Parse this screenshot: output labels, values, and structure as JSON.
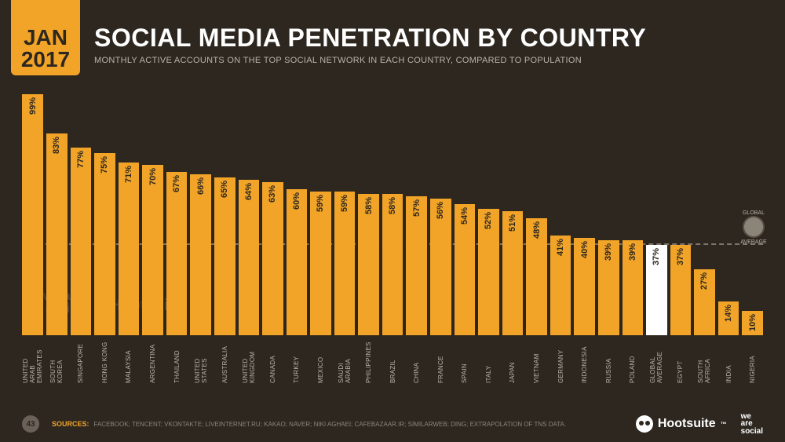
{
  "date": {
    "month": "JAN",
    "year": "2017"
  },
  "title": "SOCIAL MEDIA PENETRATION BY COUNTRY",
  "subtitle": "MONTHLY ACTIVE ACCOUNTS ON THE TOP SOCIAL NETWORK IN EACH COUNTRY, COMPARED TO POPULATION",
  "global_avg_label": "GLOBAL AVERAGE",
  "chart": {
    "type": "bar",
    "orientation": "vertical",
    "value_suffix": "%",
    "max_value": 100,
    "bar_color": "#f2a428",
    "highlight_color": "#ffffff",
    "background_color": "#2d2720",
    "value_text_color": "#2d2720",
    "label_text_color": "#b9b3ab",
    "avg_line_color": "#7e766b",
    "value_fontsize": 11,
    "label_fontsize": 8,
    "global_average_value": 37,
    "data": [
      {
        "label": "UNITED ARAB EMIRATES",
        "value": 99
      },
      {
        "label": "SOUTH KOREA",
        "value": 83
      },
      {
        "label": "SINGAPORE",
        "value": 77
      },
      {
        "label": "HONG KONG",
        "value": 75
      },
      {
        "label": "MALAYSIA",
        "value": 71
      },
      {
        "label": "ARGENTINA",
        "value": 70
      },
      {
        "label": "THAILAND",
        "value": 67
      },
      {
        "label": "UNITED STATES",
        "value": 66
      },
      {
        "label": "AUSTRALIA",
        "value": 65
      },
      {
        "label": "UNITED KINGDOM",
        "value": 64
      },
      {
        "label": "CANADA",
        "value": 63
      },
      {
        "label": "TURKEY",
        "value": 60
      },
      {
        "label": "MEXICO",
        "value": 59
      },
      {
        "label": "SAUDI ARABIA",
        "value": 59
      },
      {
        "label": "PHILIPPINES",
        "value": 58
      },
      {
        "label": "BRAZIL",
        "value": 58
      },
      {
        "label": "CHINA",
        "value": 57
      },
      {
        "label": "FRANCE",
        "value": 56
      },
      {
        "label": "SPAIN",
        "value": 54
      },
      {
        "label": "ITALY",
        "value": 52
      },
      {
        "label": "JAPAN",
        "value": 51
      },
      {
        "label": "VIETNAM",
        "value": 48
      },
      {
        "label": "GERMANY",
        "value": 41
      },
      {
        "label": "INDONESIA",
        "value": 40
      },
      {
        "label": "RUSSIA",
        "value": 39
      },
      {
        "label": "POLAND",
        "value": 39
      },
      {
        "label": "GLOBAL AVERAGE",
        "value": 37,
        "highlight": true
      },
      {
        "label": "EGYPT",
        "value": 37
      },
      {
        "label": "SOUTH AFRICA",
        "value": 27
      },
      {
        "label": "INDIA",
        "value": 14
      },
      {
        "label": "NIGERIA",
        "value": 10
      }
    ]
  },
  "watermarks": {
    "wearesocial": "we are social",
    "hootsuite": "Hootsuite"
  },
  "footer": {
    "page": "43",
    "sources_label": "SOURCES:",
    "sources_text": "FACEBOOK; TENCENT; VKONTAKTE; LIVEINTERNET.RU; KAKAO; NAVER; NIKI AGHAEI; CAFEBAZAAR.IR; SIMILARWEB; DING; EXTRAPOLATION OF TNS DATA.",
    "brand_hootsuite": "Hootsuite",
    "brand_wearesocial_l1": "we",
    "brand_wearesocial_l2": "are",
    "brand_wearesocial_l3": "social"
  }
}
